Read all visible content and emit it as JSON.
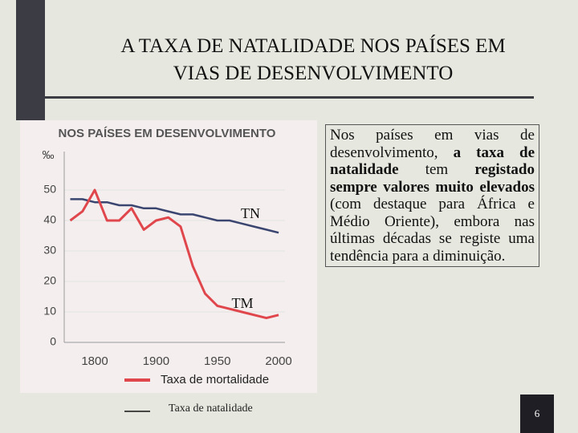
{
  "slide": {
    "title_line1": "A TAXA DE NATALIDADE NOS PAÍSES EM",
    "title_line2": "VIAS DE DESENVOLVIMENTO",
    "text": [
      "Nos países em vias de desenvolvimento, ",
      "a taxa de natalidade",
      " tem ",
      "registado sempre valores muito elevados",
      " (com destaque para África e Médio Oriente), embora nas últimas décadas se registe uma tendência para a diminuição."
    ],
    "page_number": "6"
  },
  "chart_data": {
    "type": "line",
    "title": "NOS PAÍSES EM DESENVOLVIMENTO",
    "y_label": "‰",
    "categories": [
      null,
      null,
      "1800",
      null,
      null,
      null,
      null,
      "1900",
      null,
      null,
      null,
      null,
      "1950",
      null,
      null,
      null,
      null,
      "2000"
    ],
    "series": [
      {
        "name": "Taxa de natalidade",
        "color": "#3a4570",
        "values": [
          47,
          47,
          46,
          46,
          45,
          45,
          44,
          44,
          43,
          42,
          42,
          41,
          40,
          40,
          39,
          38,
          37,
          36
        ]
      },
      {
        "name": "Taxa de mortalidade",
        "color": "#e0474c",
        "values": [
          40,
          43,
          50,
          40,
          40,
          44,
          37,
          40,
          41,
          38,
          25,
          16,
          12,
          11,
          10,
          9,
          8,
          9
        ]
      }
    ],
    "annotations": [
      "TN",
      "TM"
    ],
    "ylim": [
      0,
      60
    ],
    "yticks": [
      0,
      10,
      20,
      30,
      40,
      50
    ]
  }
}
